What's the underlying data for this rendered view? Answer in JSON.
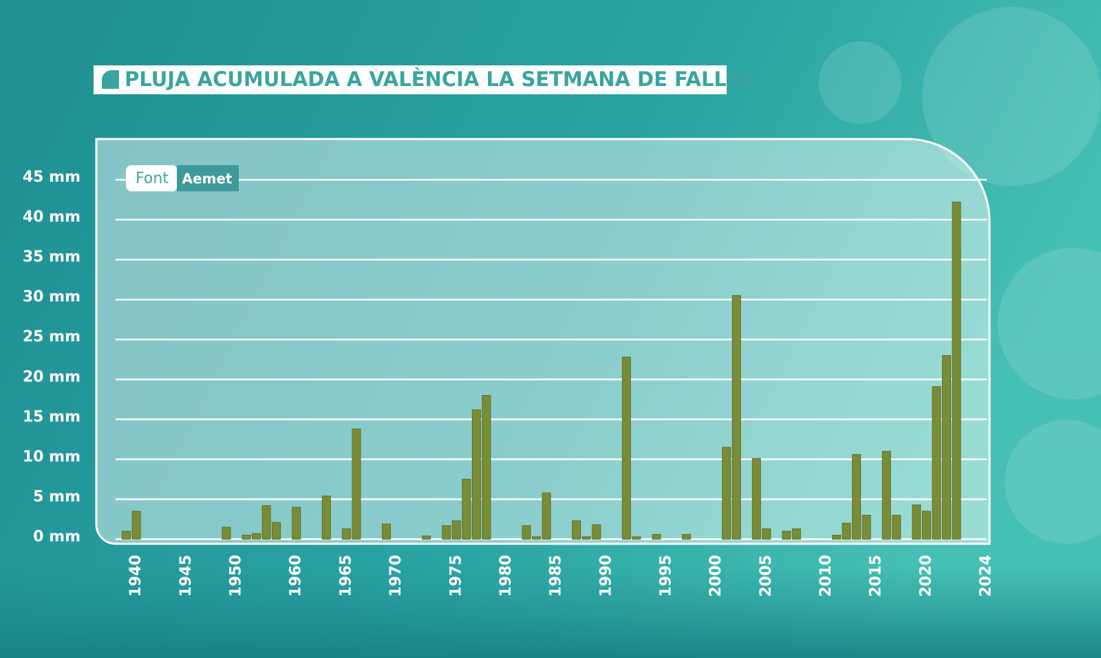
{
  "chart_data": {
    "type": "bar",
    "title": "PLUJA ACUMULADA A VALÈNCIA LA SETMANA DE FALLES",
    "source_label": "Font",
    "source": "Aemet",
    "color": "#7b8c37",
    "categories": [
      null,
      "1940",
      null,
      null,
      null,
      null,
      "1945",
      null,
      null,
      null,
      null,
      "1950",
      null,
      null,
      null,
      null,
      null,
      "1960",
      null,
      null,
      null,
      null,
      "1965",
      null,
      null,
      null,
      null,
      "1970",
      null,
      null,
      null,
      null,
      null,
      "1975",
      null,
      null,
      null,
      null,
      "1980",
      null,
      null,
      null,
      null,
      "1985",
      null,
      null,
      null,
      null,
      "1990",
      null,
      null,
      null,
      null,
      null,
      "1995",
      null,
      null,
      null,
      null,
      "2000",
      null,
      null,
      null,
      null,
      "2005",
      null,
      null,
      null,
      null,
      null,
      "2010",
      null,
      null,
      null,
      null,
      "2015",
      null,
      null,
      null,
      null,
      "2020",
      null,
      null,
      null,
      null,
      null,
      "2024"
    ],
    "values": [
      1.0,
      3.5,
      null,
      null,
      null,
      null,
      null,
      null,
      null,
      null,
      1.5,
      null,
      0.5,
      0.7,
      4.2,
      2.1,
      null,
      4.0,
      null,
      null,
      5.4,
      null,
      1.3,
      13.8,
      null,
      null,
      1.9,
      null,
      null,
      null,
      0.4,
      null,
      1.7,
      2.3,
      7.5,
      16.2,
      18.0,
      null,
      null,
      null,
      1.7,
      0.3,
      5.8,
      null,
      null,
      2.3,
      0.3,
      1.8,
      null,
      null,
      22.8,
      0.3,
      null,
      0.6,
      null,
      null,
      0.6,
      null,
      null,
      null,
      11.5,
      30.5,
      null,
      10.1,
      1.3,
      null,
      1.0,
      1.3,
      null,
      null,
      null,
      0.5,
      2.0,
      10.6,
      3.0,
      null,
      11.0,
      3.0,
      null,
      4.3,
      3.5,
      19.1,
      23.0,
      42.2,
      null,
      null,
      null
    ],
    "ylim": [
      0,
      45
    ],
    "yticks": [
      {
        "value": 0,
        "label": "0 mm"
      },
      {
        "value": 5,
        "label": "5 mm"
      },
      {
        "value": 10,
        "label": "10 mm"
      },
      {
        "value": 15,
        "label": "15 mm"
      },
      {
        "value": 20,
        "label": "20 mm"
      },
      {
        "value": 25,
        "label": "25 mm"
      },
      {
        "value": 30,
        "label": "30 mm"
      },
      {
        "value": 35,
        "label": "35 mm"
      },
      {
        "value": 40,
        "label": "40 mm"
      },
      {
        "value": 45,
        "label": "45 mm"
      }
    ],
    "grid": true
  }
}
